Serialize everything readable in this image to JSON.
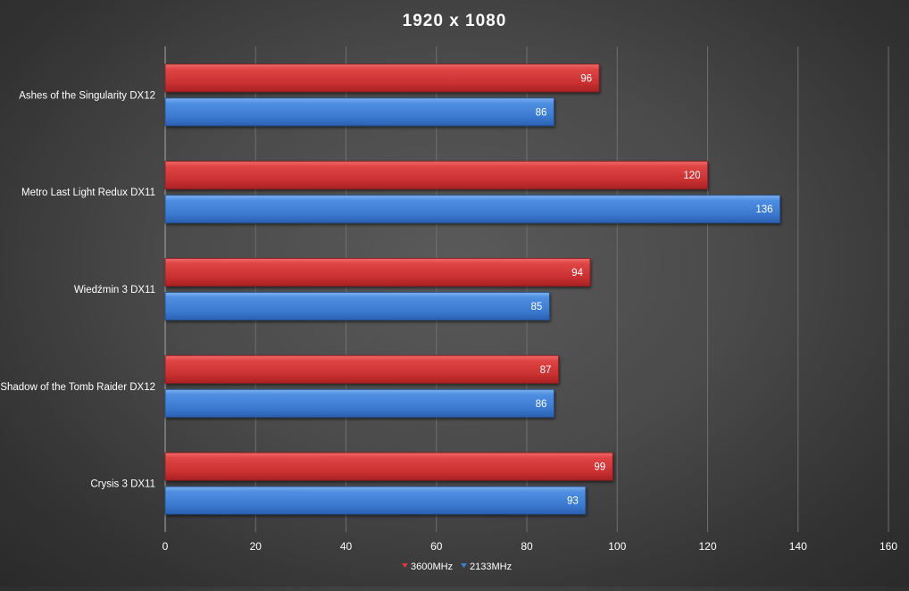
{
  "chart_data": {
    "type": "bar",
    "orientation": "horizontal",
    "title": "1920 x 1080",
    "categories": [
      "Ashes of the Singularity DX12",
      "Metro Last Light Redux DX11",
      "Wiedźmin 3 DX11",
      "Shadow of the Tomb Raider DX12",
      "Crysis 3 DX11"
    ],
    "series": [
      {
        "name": "3600MHz",
        "color": "#d9393a",
        "values": [
          96,
          120,
          94,
          87,
          99
        ]
      },
      {
        "name": "2133MHz",
        "color": "#3f7fd6",
        "values": [
          86,
          136,
          85,
          86,
          93
        ]
      }
    ],
    "xlim": [
      0,
      160
    ],
    "xticks": [
      0,
      20,
      40,
      60,
      80,
      100,
      120,
      140,
      160
    ],
    "grid": "vertical",
    "legend_position": "bottom",
    "data_labels": true
  }
}
